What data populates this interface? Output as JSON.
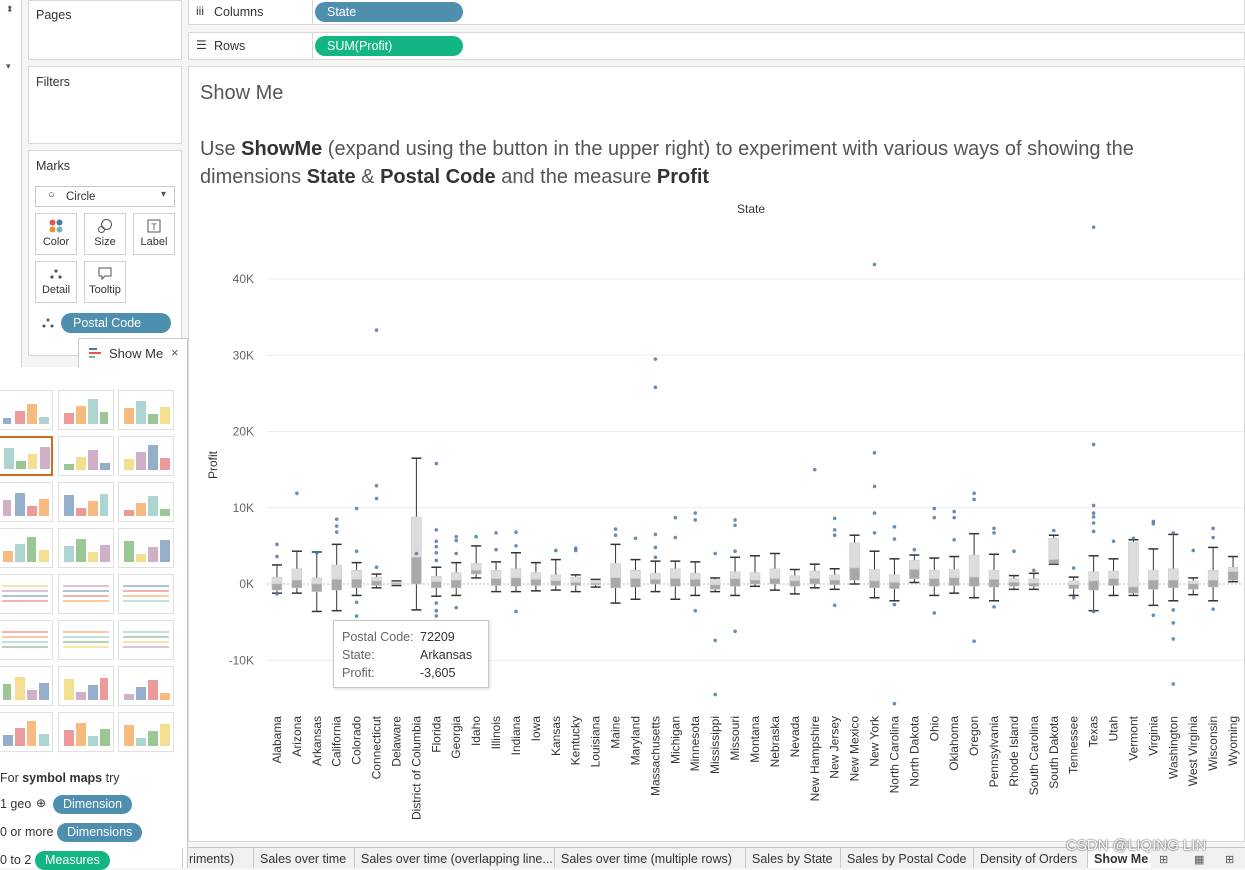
{
  "shelves": {
    "pages_title": "Pages",
    "columns_label": "Columns",
    "columns_pill": "State",
    "rows_label": "Rows",
    "rows_pill": "SUM(Profit)"
  },
  "filters_title": "Filters",
  "marks": {
    "title": "Marks",
    "type": "Circle",
    "buttons": {
      "color": "Color",
      "size": "Size",
      "label": "Label",
      "detail": "Detail",
      "tooltip": "Tooltip"
    },
    "detail_pill": "Postal Code"
  },
  "showme": {
    "title": "Show Me",
    "hint_prefix": "For",
    "hint_bold": "symbol maps",
    "hint_suffix": "try",
    "req1_text": "1 geo",
    "req1_pill": "Dimension",
    "req2_text": "0 or more",
    "req2_pill": "Dimensions",
    "req3_text": "0 to 2",
    "req3_pill": "Measures"
  },
  "worksheet": {
    "title": "Show Me",
    "caption": {
      "t1": "Use ",
      "b1": "ShowMe",
      "t2": " (expand using the button in the upper right) to experiment with various ways of showing the dimensions ",
      "b2": "State",
      "t3": " & ",
      "b3": "Postal Code",
      "t4": " and the measure ",
      "b4": "Profit"
    }
  },
  "tooltip": {
    "k1": "Postal Code:",
    "v1": "72209",
    "k2": "State:",
    "v2": "Arkansas",
    "k3": "Profit:",
    "v3": "-3,605"
  },
  "tabs": [
    "riments)",
    "Sales over time",
    "Sales over time (overlapping line...",
    "Sales over time (multiple rows)",
    "Sales by State",
    "Sales by Postal Code",
    "Density of Orders",
    "Show Me"
  ],
  "watermark": "CSDN @LIQING LIN",
  "chart_data": {
    "type": "box",
    "title": "State",
    "xlabel": "",
    "ylabel": "Profit",
    "ylim": [
      -16000,
      48000
    ],
    "yticks": [
      -10000,
      0,
      10000,
      20000,
      30000,
      40000
    ],
    "ytick_labels": [
      "-10K",
      "0K",
      "10K",
      "20K",
      "30K",
      "40K"
    ],
    "categories": [
      "Alabama",
      "Arizona",
      "Arkansas",
      "California",
      "Colorado",
      "Connecticut",
      "Delaware",
      "District of Columbia",
      "Florida",
      "Georgia",
      "Idaho",
      "Illinois",
      "Indiana",
      "Iowa",
      "Kansas",
      "Kentucky",
      "Louisiana",
      "Maine",
      "Maryland",
      "Massachusetts",
      "Michigan",
      "Minnesota",
      "Mississippi",
      "Missouri",
      "Montana",
      "Nebraska",
      "Nevada",
      "New Hampshire",
      "New Jersey",
      "New Mexico",
      "New York",
      "North Carolina",
      "North Dakota",
      "Ohio",
      "Oklahoma",
      "Oregon",
      "Pennsylvania",
      "Rhode Island",
      "South Carolina",
      "South Dakota",
      "Tennessee",
      "Texas",
      "Utah",
      "Vermont",
      "Virginia",
      "Washington",
      "West Virginia",
      "Wisconsin",
      "Wyoming"
    ],
    "boxes": [
      [
        -1200,
        -800,
        0,
        900,
        2500
      ],
      [
        -1200,
        -500,
        500,
        2000,
        4300
      ],
      [
        -3600,
        -1000,
        0,
        800,
        4200
      ],
      [
        -3500,
        -800,
        600,
        2500,
        5200
      ],
      [
        -1500,
        -500,
        600,
        1800,
        2800
      ],
      [
        -500,
        -200,
        400,
        900,
        1300
      ],
      [
        -200,
        -100,
        100,
        300,
        400
      ],
      [
        -3400,
        0,
        3500,
        8800,
        16500
      ],
      [
        -1600,
        -500,
        300,
        1000,
        2200
      ],
      [
        -1500,
        -500,
        500,
        1500,
        2800
      ],
      [
        800,
        1300,
        1800,
        2700,
        5000
      ],
      [
        -1000,
        -200,
        700,
        1800,
        2900
      ],
      [
        -1000,
        -300,
        800,
        2000,
        4100
      ],
      [
        -900,
        -200,
        600,
        1500,
        2800
      ],
      [
        -800,
        -200,
        400,
        1200,
        3200
      ],
      [
        -1000,
        -200,
        200,
        900,
        1200
      ],
      [
        -400,
        -100,
        100,
        500,
        600
      ],
      [
        -2500,
        -500,
        800,
        2700,
        5200
      ],
      [
        -2000,
        -400,
        700,
        1800,
        3200
      ],
      [
        -1000,
        0,
        600,
        1400,
        3000
      ],
      [
        -2000,
        -300,
        700,
        2000,
        3000
      ],
      [
        -1500,
        -300,
        600,
        1400,
        2900
      ],
      [
        -1000,
        -700,
        -100,
        600,
        800
      ],
      [
        -1500,
        -300,
        700,
        1600,
        3500
      ],
      [
        -300,
        0,
        500,
        1500,
        3700
      ],
      [
        -800,
        0,
        700,
        2000,
        4000
      ],
      [
        -1300,
        -300,
        400,
        1100,
        1900
      ],
      [
        -500,
        0,
        700,
        1700,
        2600
      ],
      [
        -700,
        -100,
        500,
        1200,
        2000
      ],
      [
        0,
        500,
        2100,
        5400,
        6400
      ],
      [
        -1800,
        -500,
        400,
        1900,
        4300
      ],
      [
        -2200,
        -600,
        200,
        1200,
        3300
      ],
      [
        200,
        700,
        1900,
        3100,
        3800
      ],
      [
        -1500,
        -300,
        700,
        1800,
        3400
      ],
      [
        -1200,
        -200,
        800,
        1900,
        3600
      ],
      [
        -1800,
        -300,
        900,
        3800,
        6600
      ],
      [
        -2200,
        -400,
        600,
        1800,
        3900
      ],
      [
        -700,
        -300,
        200,
        700,
        1100
      ],
      [
        -700,
        -300,
        100,
        700,
        1400
      ],
      [
        2600,
        2700,
        3200,
        6000,
        6400
      ],
      [
        -1500,
        -600,
        -100,
        400,
        900
      ],
      [
        -3500,
        -800,
        400,
        1600,
        3700
      ],
      [
        -1500,
        -200,
        700,
        1700,
        3300
      ],
      [
        -1500,
        -1200,
        -400,
        5500,
        5800
      ],
      [
        -2800,
        -700,
        500,
        1800,
        4600
      ],
      [
        -2200,
        -500,
        500,
        2000,
        6500
      ],
      [
        -1400,
        -700,
        0,
        400,
        800
      ],
      [
        -2200,
        -400,
        500,
        1800,
        4800
      ],
      [
        300,
        500,
        1600,
        2200,
        3600
      ]
    ],
    "outliers": [
      [
        0,
        5200
      ],
      [
        0,
        3600
      ],
      [
        0,
        -1300
      ],
      [
        1,
        11900
      ],
      [
        2,
        4100
      ],
      [
        3,
        8500
      ],
      [
        3,
        7600
      ],
      [
        3,
        6800
      ],
      [
        3,
        -5000
      ],
      [
        3,
        -7500
      ],
      [
        3,
        -8600
      ],
      [
        4,
        9900
      ],
      [
        4,
        4300
      ],
      [
        4,
        -2400
      ],
      [
        4,
        -4200
      ],
      [
        5,
        33300
      ],
      [
        5,
        12900
      ],
      [
        5,
        11200
      ],
      [
        5,
        2200
      ],
      [
        7,
        4000
      ],
      [
        8,
        15800
      ],
      [
        8,
        7100
      ],
      [
        8,
        5600
      ],
      [
        8,
        4900
      ],
      [
        8,
        4100
      ],
      [
        8,
        3100
      ],
      [
        8,
        -2500
      ],
      [
        8,
        -3500
      ],
      [
        8,
        -4200
      ],
      [
        8,
        -5100
      ],
      [
        9,
        6200
      ],
      [
        9,
        5700
      ],
      [
        9,
        4000
      ],
      [
        9,
        -3100
      ],
      [
        9,
        -5700
      ],
      [
        10,
        6200
      ],
      [
        11,
        6700
      ],
      [
        11,
        4500
      ],
      [
        12,
        6800
      ],
      [
        12,
        5000
      ],
      [
        12,
        -3600
      ],
      [
        14,
        4400
      ],
      [
        15,
        4700
      ],
      [
        15,
        4400
      ],
      [
        17,
        7200
      ],
      [
        17,
        6400
      ],
      [
        18,
        6000
      ],
      [
        19,
        29500
      ],
      [
        19,
        25800
      ],
      [
        19,
        6500
      ],
      [
        19,
        4800
      ],
      [
        19,
        3500
      ],
      [
        20,
        8700
      ],
      [
        20,
        6100
      ],
      [
        21,
        9300
      ],
      [
        21,
        8400
      ],
      [
        21,
        -3500
      ],
      [
        22,
        4000
      ],
      [
        22,
        -7400
      ],
      [
        22,
        -14500
      ],
      [
        23,
        8400
      ],
      [
        23,
        7700
      ],
      [
        23,
        4300
      ],
      [
        23,
        -6200
      ],
      [
        27,
        15000
      ],
      [
        28,
        8600
      ],
      [
        28,
        7100
      ],
      [
        28,
        6400
      ],
      [
        28,
        -2800
      ],
      [
        30,
        41900
      ],
      [
        30,
        17200
      ],
      [
        30,
        12800
      ],
      [
        30,
        9300
      ],
      [
        30,
        6700
      ],
      [
        31,
        7500
      ],
      [
        31,
        5900
      ],
      [
        31,
        -15700
      ],
      [
        31,
        -2700
      ],
      [
        32,
        4500
      ],
      [
        33,
        9900
      ],
      [
        33,
        8700
      ],
      [
        33,
        -3800
      ],
      [
        34,
        9500
      ],
      [
        34,
        8700
      ],
      [
        34,
        5800
      ],
      [
        35,
        11900
      ],
      [
        35,
        11100
      ],
      [
        35,
        -7500
      ],
      [
        36,
        7300
      ],
      [
        36,
        6700
      ],
      [
        36,
        -3000
      ],
      [
        37,
        4300
      ],
      [
        38,
        1800
      ],
      [
        39,
        7000
      ],
      [
        40,
        2100
      ],
      [
        40,
        -1800
      ],
      [
        41,
        46800
      ],
      [
        41,
        18300
      ],
      [
        41,
        10300
      ],
      [
        41,
        9300
      ],
      [
        41,
        8800
      ],
      [
        41,
        8000
      ],
      [
        41,
        6900
      ],
      [
        41,
        -3600
      ],
      [
        42,
        5600
      ],
      [
        43,
        6000
      ],
      [
        44,
        8200
      ],
      [
        44,
        7900
      ],
      [
        44,
        -4100
      ],
      [
        45,
        6700
      ],
      [
        45,
        -3400
      ],
      [
        45,
        -5100
      ],
      [
        45,
        -7200
      ],
      [
        45,
        -13100
      ],
      [
        46,
        4400
      ],
      [
        47,
        7300
      ],
      [
        47,
        6100
      ],
      [
        47,
        -3300
      ]
    ],
    "grid": true,
    "legend": "none"
  }
}
